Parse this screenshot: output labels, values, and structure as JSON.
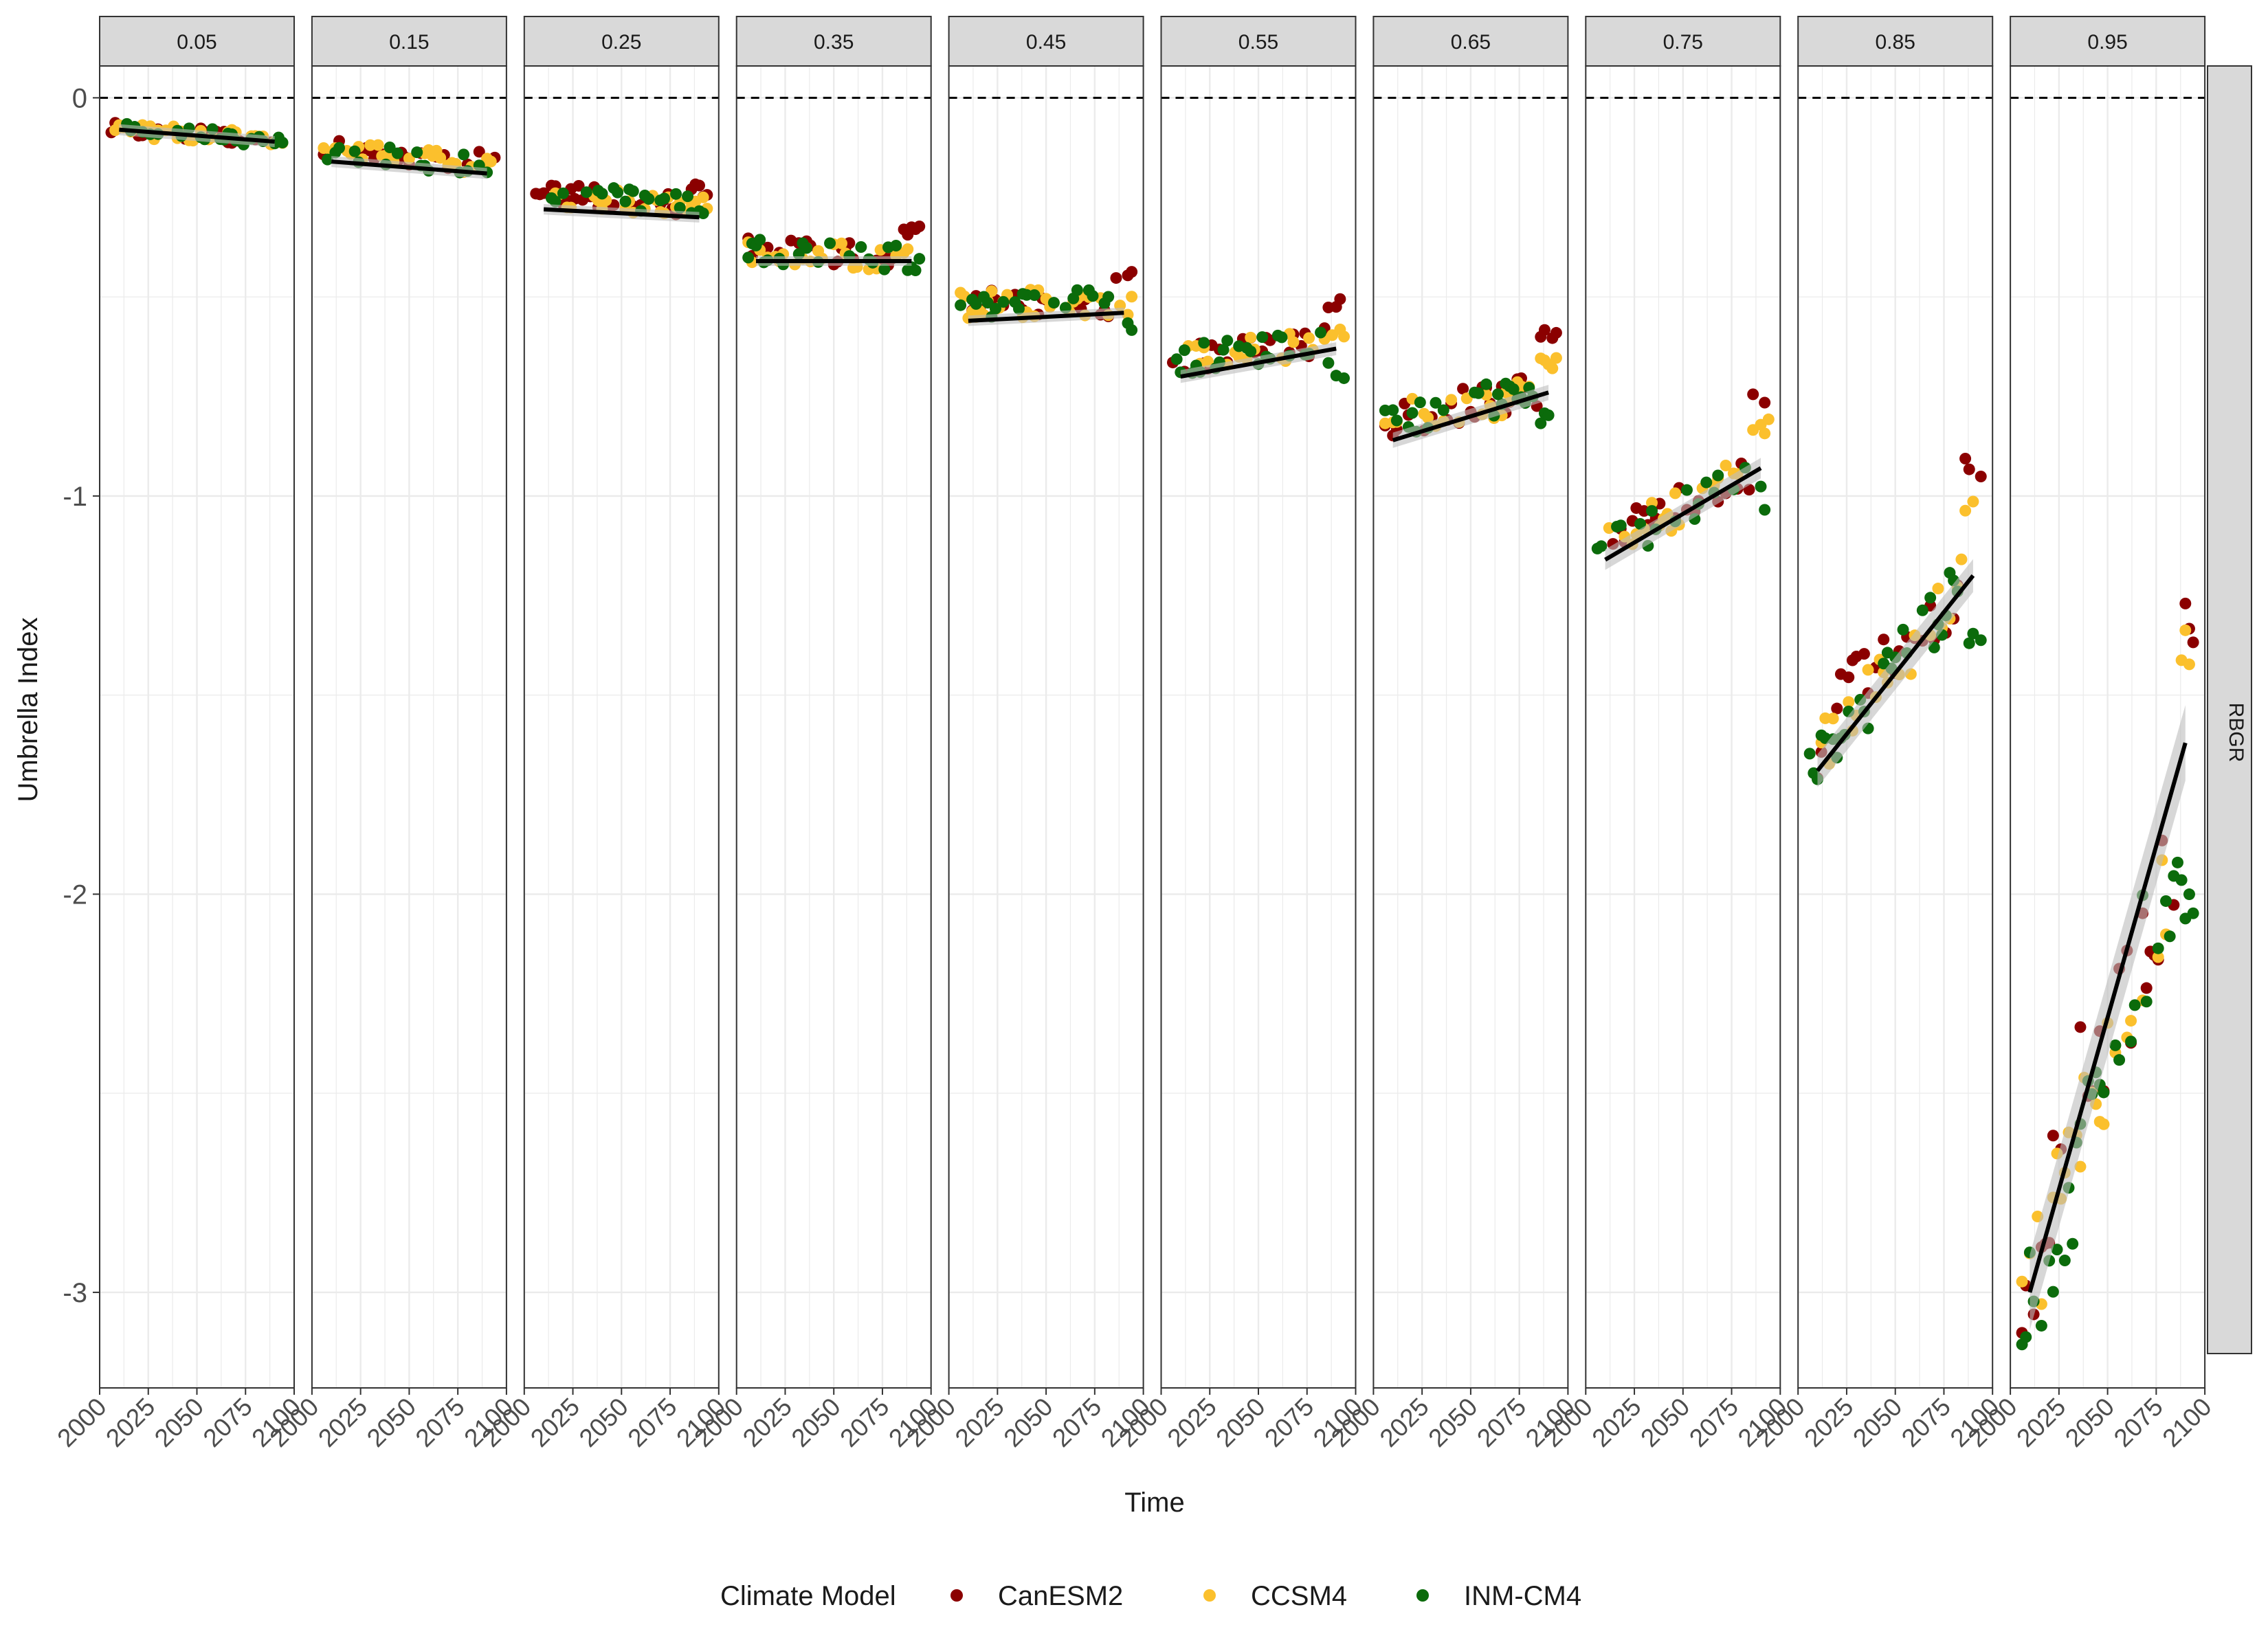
{
  "chart_data": {
    "type": "scatter",
    "facet_variable_values": [
      "0.05",
      "0.15",
      "0.25",
      "0.35",
      "0.45",
      "0.55",
      "0.65",
      "0.75",
      "0.85",
      "0.95"
    ],
    "row_strip": "RBGR",
    "xlabel": "Time",
    "ylabel": "Umbrella Index",
    "xlim": [
      2000,
      2100
    ],
    "ylim": [
      -3.24,
      0.08
    ],
    "x_ticks": [
      2000,
      2025,
      2050,
      2075,
      2100
    ],
    "y_ticks": [
      0,
      -1,
      -2,
      -3
    ],
    "y_tick_labels": [
      "0",
      "-1",
      "-2",
      "-3"
    ],
    "reference_line": {
      "y": 0,
      "style": "dashed"
    },
    "grid": true,
    "legend": {
      "title": "Climate Model",
      "position": "bottom"
    },
    "series": [
      {
        "name": "CanESM2",
        "color": "#8B0000"
      },
      {
        "name": "CCSM4",
        "color": "#FBC02D"
      },
      {
        "name": "INM-CM4",
        "color": "#0B6B0B"
      }
    ],
    "fit_line": {
      "color": "#000000",
      "ribbon_color": "#bdbdbd"
    },
    "panels": [
      {
        "label": "0.05",
        "y_base": -0.07,
        "slope": -0.0003,
        "early": -0.08,
        "late": {
          "CanESM2": -0.1,
          "CCSM4": -0.11,
          "INM-CM4": -0.11
        },
        "spread": 0.012,
        "fit": [
          [
            2010,
            -0.08
          ],
          [
            2090,
            -0.11
          ]
        ]
      },
      {
        "label": "0.15",
        "y_base": -0.13,
        "slope": -0.0005,
        "early": -0.13,
        "late": {
          "CanESM2": -0.15,
          "CCSM4": -0.17,
          "INM-CM4": -0.18
        },
        "spread": 0.018,
        "fit": [
          [
            2010,
            -0.16
          ],
          [
            2090,
            -0.19
          ]
        ]
      },
      {
        "label": "0.25",
        "y_base": -0.24,
        "slope": -0.0004,
        "early": -0.24,
        "late": {
          "CanESM2": -0.23,
          "CCSM4": -0.27,
          "INM-CM4": -0.29
        },
        "spread": 0.02,
        "fit": [
          [
            2010,
            -0.28
          ],
          [
            2090,
            -0.3
          ]
        ]
      },
      {
        "label": "0.35",
        "y_base": -0.38,
        "slope": -0.0003,
        "early": -0.38,
        "late": {
          "CanESM2": -0.34,
          "CCSM4": -0.39,
          "INM-CM4": -0.42
        },
        "spread": 0.022,
        "fit": [
          [
            2010,
            -0.41
          ],
          [
            2090,
            -0.41
          ]
        ]
      },
      {
        "label": "0.45",
        "y_base": -0.52,
        "slope": 0.0001,
        "early": -0.52,
        "late": {
          "CanESM2": -0.46,
          "CCSM4": -0.52,
          "INM-CM4": -0.56
        },
        "spread": 0.025,
        "fit": [
          [
            2010,
            -0.56
          ],
          [
            2090,
            -0.54
          ]
        ]
      },
      {
        "label": "0.55",
        "y_base": -0.66,
        "slope": 0.0006,
        "early": -0.66,
        "late": {
          "CanESM2": -0.52,
          "CCSM4": -0.58,
          "INM-CM4": -0.68
        },
        "spread": 0.025,
        "fit": [
          [
            2010,
            -0.7
          ],
          [
            2090,
            -0.63
          ]
        ]
      },
      {
        "label": "0.65",
        "y_base": -0.8,
        "slope": 0.0009,
        "early": -0.81,
        "late": {
          "CanESM2": -0.58,
          "CCSM4": -0.67,
          "INM-CM4": -0.81
        },
        "spread": 0.03,
        "fit": [
          [
            2010,
            -0.86
          ],
          [
            2090,
            -0.74
          ]
        ]
      },
      {
        "label": "0.75",
        "y_base": -1.11,
        "slope": 0.0022,
        "early": -1.12,
        "late": {
          "CanESM2": -0.74,
          "CCSM4": -0.83,
          "INM-CM4": -1.0
        },
        "spread": 0.035,
        "fit": [
          [
            2010,
            -1.16
          ],
          [
            2090,
            -0.93
          ]
        ]
      },
      {
        "label": "0.85",
        "y_base": -1.66,
        "slope": 0.0055,
        "early": -1.66,
        "late": {
          "CanESM2": -0.95,
          "CCSM4": -1.05,
          "INM-CM4": -1.35
        },
        "spread": 0.05,
        "fit": [
          [
            2010,
            -1.69
          ],
          [
            2090,
            -1.2
          ]
        ]
      },
      {
        "label": "0.95",
        "y_base": -3.02,
        "slope": 0.014,
        "early": -3.02,
        "late": {
          "CanESM2": -1.3,
          "CCSM4": -1.33,
          "INM-CM4": -1.98
        },
        "spread": 0.1,
        "fit": [
          [
            2010,
            -3.0
          ],
          [
            2090,
            -1.62
          ]
        ]
      }
    ]
  }
}
